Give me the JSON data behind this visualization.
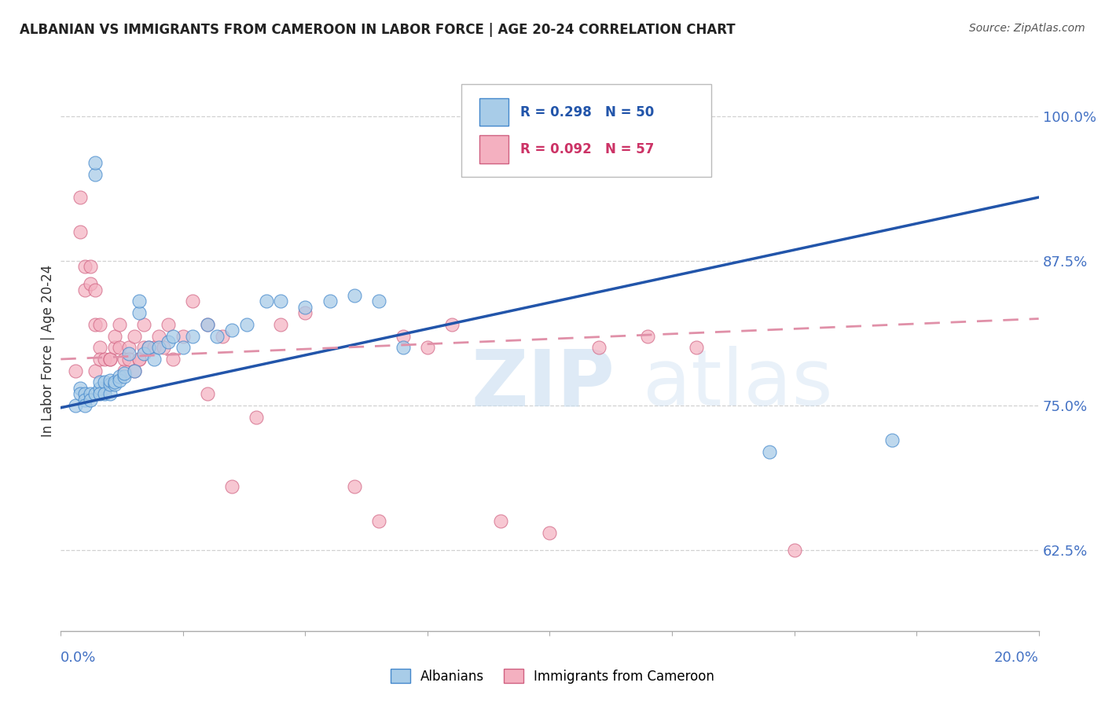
{
  "title": "ALBANIAN VS IMMIGRANTS FROM CAMEROON IN LABOR FORCE | AGE 20-24 CORRELATION CHART",
  "source": "Source: ZipAtlas.com",
  "ylabel": "In Labor Force | Age 20-24",
  "x_min": 0.0,
  "x_max": 0.2,
  "y_min": 0.555,
  "y_max": 1.04,
  "y_ticks": [
    0.625,
    0.75,
    0.875,
    1.0
  ],
  "y_tick_labels": [
    "62.5%",
    "75.0%",
    "87.5%",
    "100.0%"
  ],
  "albanian_R": 0.298,
  "albanian_N": 50,
  "cameroon_R": 0.092,
  "cameroon_N": 57,
  "albanian_color": "#a8cce8",
  "albanian_edge_color": "#4488cc",
  "cameroon_color": "#f4b0c0",
  "cameroon_edge_color": "#d06080",
  "albanian_line_color": "#2255aa",
  "cameroon_line_color": "#e090a8",
  "albanian_line_y0": 0.748,
  "albanian_line_y1": 0.93,
  "cameroon_line_y0": 0.79,
  "cameroon_line_y1": 0.825,
  "albanian_scatter_x": [
    0.003,
    0.004,
    0.004,
    0.005,
    0.005,
    0.005,
    0.006,
    0.006,
    0.007,
    0.007,
    0.007,
    0.008,
    0.008,
    0.008,
    0.009,
    0.009,
    0.01,
    0.01,
    0.01,
    0.011,
    0.011,
    0.012,
    0.012,
    0.013,
    0.013,
    0.014,
    0.015,
    0.016,
    0.016,
    0.017,
    0.018,
    0.019,
    0.02,
    0.022,
    0.023,
    0.025,
    0.027,
    0.03,
    0.032,
    0.035,
    0.038,
    0.042,
    0.045,
    0.05,
    0.055,
    0.06,
    0.065,
    0.07,
    0.145,
    0.17
  ],
  "albanian_scatter_y": [
    0.75,
    0.765,
    0.76,
    0.76,
    0.755,
    0.75,
    0.76,
    0.755,
    0.95,
    0.96,
    0.76,
    0.765,
    0.77,
    0.76,
    0.77,
    0.76,
    0.76,
    0.768,
    0.772,
    0.768,
    0.77,
    0.775,
    0.772,
    0.775,
    0.778,
    0.795,
    0.78,
    0.83,
    0.84,
    0.795,
    0.8,
    0.79,
    0.8,
    0.805,
    0.81,
    0.8,
    0.81,
    0.82,
    0.81,
    0.815,
    0.82,
    0.84,
    0.84,
    0.835,
    0.84,
    0.845,
    0.84,
    0.8,
    0.71,
    0.72
  ],
  "cameroon_scatter_x": [
    0.003,
    0.004,
    0.004,
    0.005,
    0.005,
    0.006,
    0.006,
    0.007,
    0.007,
    0.007,
    0.008,
    0.008,
    0.008,
    0.009,
    0.009,
    0.01,
    0.01,
    0.011,
    0.011,
    0.012,
    0.012,
    0.013,
    0.013,
    0.014,
    0.014,
    0.015,
    0.015,
    0.016,
    0.016,
    0.017,
    0.017,
    0.018,
    0.019,
    0.02,
    0.021,
    0.022,
    0.023,
    0.025,
    0.027,
    0.03,
    0.03,
    0.033,
    0.035,
    0.04,
    0.045,
    0.05,
    0.06,
    0.065,
    0.07,
    0.075,
    0.08,
    0.09,
    0.1,
    0.11,
    0.12,
    0.13,
    0.15
  ],
  "cameroon_scatter_y": [
    0.78,
    0.93,
    0.9,
    0.87,
    0.85,
    0.855,
    0.87,
    0.85,
    0.82,
    0.78,
    0.8,
    0.82,
    0.79,
    0.79,
    0.765,
    0.79,
    0.79,
    0.8,
    0.81,
    0.8,
    0.82,
    0.78,
    0.79,
    0.8,
    0.79,
    0.78,
    0.81,
    0.79,
    0.79,
    0.8,
    0.82,
    0.8,
    0.8,
    0.81,
    0.8,
    0.82,
    0.79,
    0.81,
    0.84,
    0.82,
    0.76,
    0.81,
    0.68,
    0.74,
    0.82,
    0.83,
    0.68,
    0.65,
    0.81,
    0.8,
    0.82,
    0.65,
    0.64,
    0.8,
    0.81,
    0.8,
    0.625
  ],
  "watermark_zip": "ZIP",
  "watermark_atlas": "atlas",
  "background_color": "#ffffff",
  "grid_color": "#cccccc"
}
